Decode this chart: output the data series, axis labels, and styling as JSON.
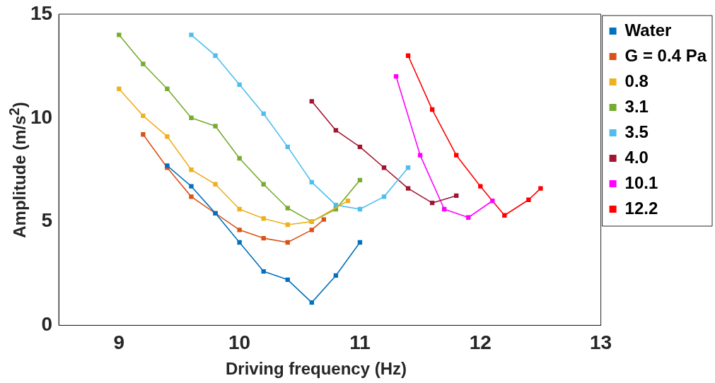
{
  "chart_data": {
    "type": "line",
    "xlabel": "Driving frequency (Hz)",
    "ylabel": "Amplitude (m/s$^{2}$)",
    "xlim": [
      8.5,
      13
    ],
    "xticks": [
      9,
      10,
      11,
      12,
      13
    ],
    "ylim": [
      0,
      15
    ],
    "yticks": [
      0,
      5,
      10,
      15
    ],
    "grid": false,
    "legend": "right",
    "marker": "square",
    "line_style": "solid",
    "series": [
      {
        "name": "Water",
        "color": "#0072bd",
        "x": [
          9.4,
          9.6,
          9.8,
          10,
          10.2,
          10.4,
          10.6,
          10.8,
          11
        ],
        "values": [
          7.7,
          6.7,
          5.4,
          4.0,
          2.6,
          2.2,
          1.1,
          2.4,
          4.0
        ]
      },
      {
        "name": "G = 0.4 Pa",
        "color": "#d95319",
        "x": [
          9.2,
          9.4,
          9.6,
          9.8,
          10,
          10.2,
          10.4,
          10.6,
          10.7
        ],
        "values": [
          9.2,
          7.6,
          6.2,
          5.4,
          4.6,
          4.2,
          4.0,
          4.6,
          5.1
        ]
      },
      {
        "name": "0.8",
        "color": "#edb120",
        "x": [
          9,
          9.2,
          9.4,
          9.6,
          9.8,
          10,
          10.2,
          10.4,
          10.6,
          10.9
        ],
        "values": [
          11.4,
          10.1,
          9.1,
          7.5,
          6.8,
          5.6,
          5.15,
          4.85,
          5.0,
          6.0
        ]
      },
      {
        "name": "3.1",
        "color": "#77ac30",
        "x": [
          9,
          9.2,
          9.4,
          9.6,
          9.8,
          10,
          10.2,
          10.4,
          10.6,
          10.8,
          11
        ],
        "values": [
          14.0,
          12.6,
          11.4,
          10.0,
          9.6,
          8.05,
          6.8,
          5.65,
          5.0,
          5.6,
          7.0
        ]
      },
      {
        "name": "3.5",
        "color": "#4dbeee",
        "x": [
          9.6,
          9.8,
          10,
          10.2,
          10.4,
          10.6,
          10.8,
          11,
          11.2,
          11.4
        ],
        "values": [
          14.0,
          13.0,
          11.6,
          10.2,
          8.6,
          6.9,
          5.8,
          5.6,
          6.2,
          7.6
        ]
      },
      {
        "name": "4.0",
        "color": "#a2142f",
        "x": [
          10.6,
          10.8,
          11,
          11.2,
          11.4,
          11.6,
          11.8
        ],
        "values": [
          10.8,
          9.4,
          8.6,
          7.6,
          6.6,
          5.9,
          6.25
        ]
      },
      {
        "name": "10.1",
        "color": "#ff00ff",
        "x": [
          11.3,
          11.5,
          11.7,
          11.9,
          12.1
        ],
        "values": [
          12.0,
          8.2,
          5.6,
          5.2,
          6.0
        ]
      },
      {
        "name": "12.2",
        "color": "#ff0000",
        "x": [
          11.4,
          11.6,
          11.8,
          12,
          12.2,
          12.4,
          12.5
        ],
        "values": [
          13.0,
          10.4,
          8.2,
          6.7,
          5.3,
          6.05,
          6.6
        ]
      }
    ]
  }
}
